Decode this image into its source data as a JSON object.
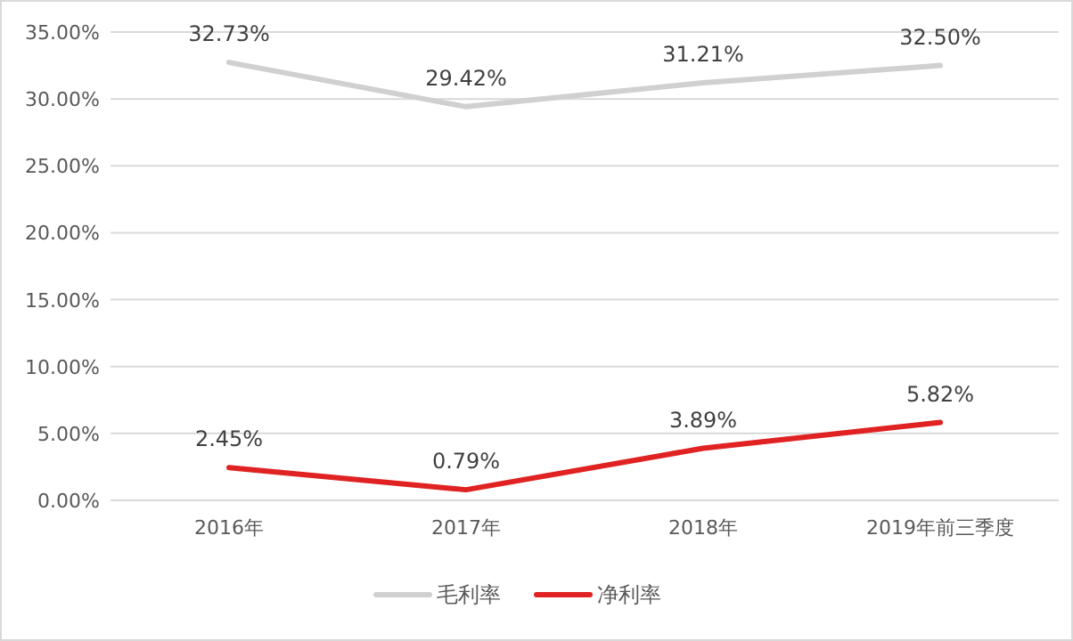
{
  "chart_data": {
    "type": "line",
    "categories": [
      "2016年",
      "2017年",
      "2018年",
      "2019年前三季度"
    ],
    "series": [
      {
        "name": "毛利率",
        "color": "#d0d0d0",
        "values": [
          32.73,
          29.42,
          31.21,
          32.5
        ],
        "value_labels": [
          "32.73%",
          "29.42%",
          "31.21%",
          "32.50%"
        ]
      },
      {
        "name": "净利率",
        "color": "#e02222",
        "values": [
          2.45,
          0.79,
          3.89,
          5.82
        ],
        "value_labels": [
          "2.45%",
          "0.79%",
          "3.89%",
          "5.82%"
        ]
      }
    ],
    "ylim": [
      0,
      35
    ],
    "yticks": [
      {
        "value": 0,
        "label": "0.00%"
      },
      {
        "value": 5,
        "label": "5.00%"
      },
      {
        "value": 10,
        "label": "10.00%"
      },
      {
        "value": 15,
        "label": "15.00%"
      },
      {
        "value": 20,
        "label": "20.00%"
      },
      {
        "value": 25,
        "label": "25.00%"
      },
      {
        "value": 30,
        "label": "30.00%"
      },
      {
        "value": 35,
        "label": "35.00%"
      }
    ],
    "grid": "y",
    "legend": "bottom",
    "marker": "none",
    "line_style": "solid"
  }
}
